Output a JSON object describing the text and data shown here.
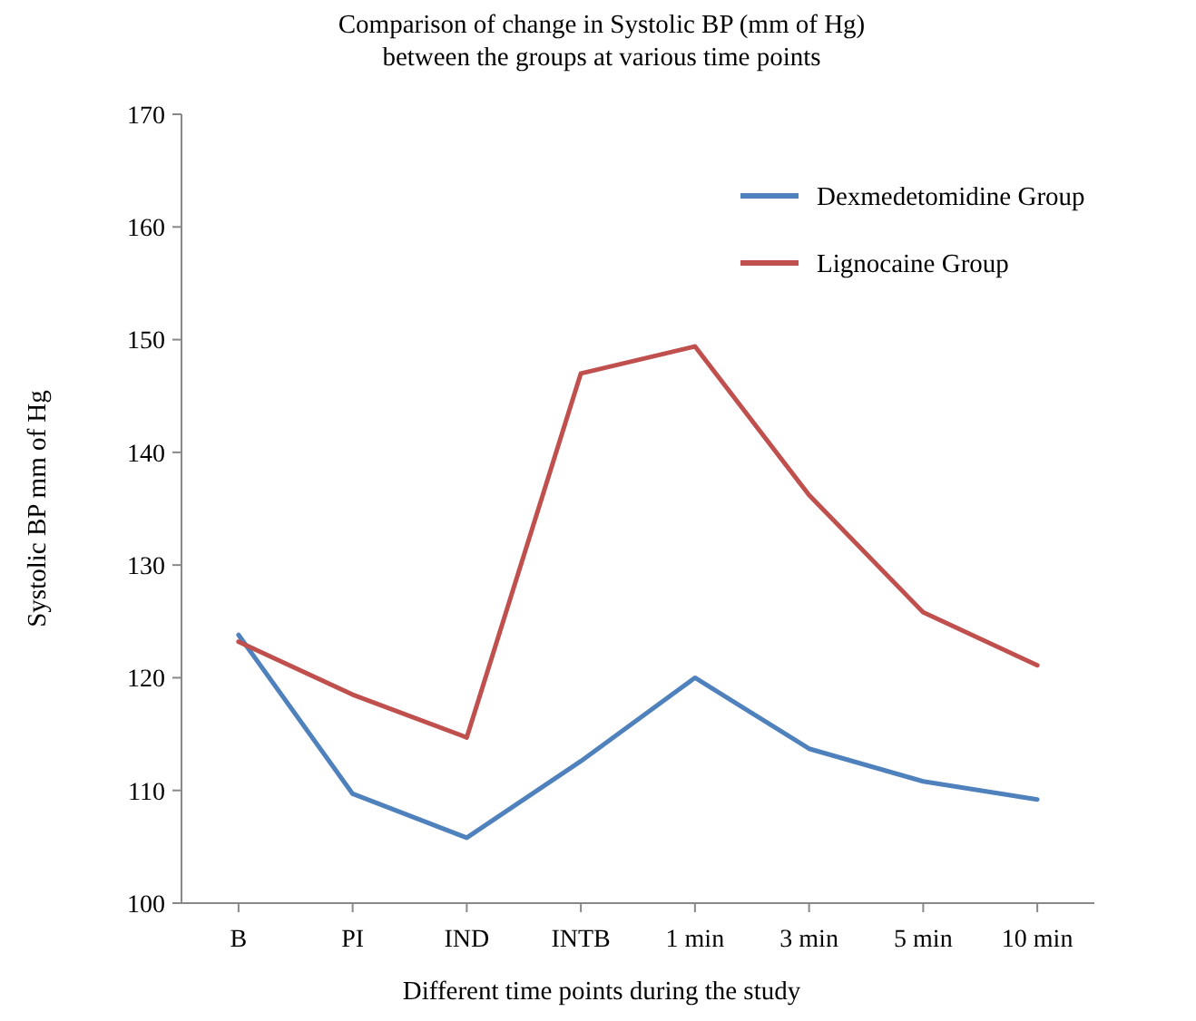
{
  "chart_data": {
    "type": "line",
    "title": "Comparison of change in Systolic BP (mm of Hg)\nbetween the groups at various time points",
    "xlabel": "Different time points during the study",
    "ylabel": "Systolic BP mm of Hg",
    "categories": [
      "B",
      "PI",
      "IND",
      "INTB",
      "1 min",
      "3 min",
      "5 min",
      "10 min"
    ],
    "series": [
      {
        "name": "Dexmedetomidine Group",
        "color": "#4f81bd",
        "values": [
          123.8,
          109.7,
          105.8,
          112.6,
          120,
          113.7,
          110.8,
          109.2
        ]
      },
      {
        "name": "Lignocaine Group",
        "color": "#c0504d",
        "values": [
          123.2,
          118.5,
          114.7,
          147,
          149.4,
          136.2,
          125.8,
          121.1
        ]
      }
    ],
    "ylim": [
      100,
      170
    ],
    "yticks": [
      100,
      110,
      120,
      130,
      140,
      150,
      160,
      170
    ],
    "grid": false,
    "legend": "top right",
    "marker": "none",
    "line_style": "solid"
  }
}
